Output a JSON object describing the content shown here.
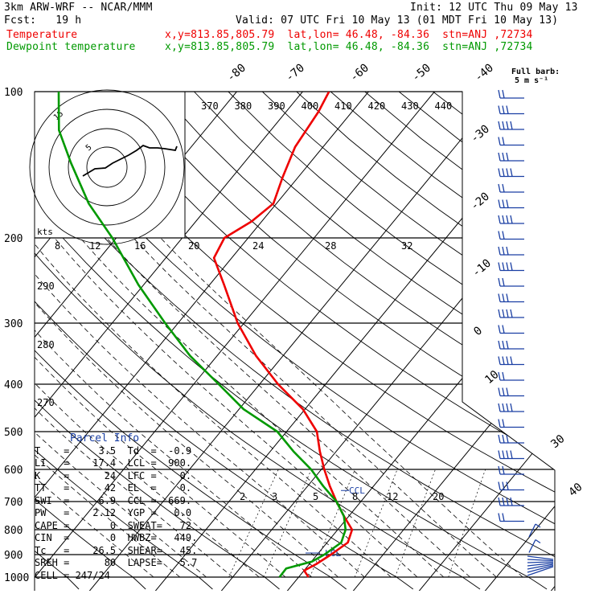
{
  "header": {
    "model": "3km ARW-WRF -- NCAR/MMM",
    "init": "Init: 12 UTC Thu 09 May 13",
    "fcst": "Fcst:   19 h",
    "valid": "Valid: 07 UTC Fri 10 May 13 (01 MDT Fri 10 May 13)",
    "temp_label": "Temperature",
    "dew_label": "Dewpoint temperature",
    "loc_info": "x,y=813.85,805.79  lat,lon= 46.48, -84.36  stn=ANJ ,72734"
  },
  "colors": {
    "temperature": "#ee0000",
    "dewpoint": "#009900",
    "parcel_title": "#1a3fa3",
    "barb": "#1a3fa3"
  },
  "barb_legend": {
    "title": "Full barb:",
    "unit": "5 m s⁻¹"
  },
  "hodograph": {
    "unit_label": "kts",
    "ring_labels": [
      "15",
      "5"
    ]
  },
  "parcel": {
    "title": "Parcel Info",
    "rows": [
      "T    =     3.5  Td  =  -0.9",
      "LI   =    17.4  LCL =  900.",
      "K    =      24  LFC =    0.",
      "TT   =      42  EL  =    0.",
      "SWI  =     6.9  CCL =  669.",
      "PW   =    2.12  YGP =   0.0",
      "CAPE =       0  SWEAT=   72",
      "CIN  =       0  HWBZ=   449.",
      "Tc   =    26.5  SHEAR=   45.",
      "SREH =      80  LAPSE=   5.7",
      "CELL = 247/24"
    ]
  },
  "chart_data": {
    "type": "skew-t",
    "pressure_ticks": [
      "100",
      "200",
      "300",
      "400",
      "500",
      "600",
      "700",
      "800",
      "900",
      "1000"
    ],
    "isotherm_labels_top": [
      "-80",
      "-70",
      "-60",
      "-50",
      "-40"
    ],
    "isotherm_labels_right": [
      "-30",
      "-20",
      "-10",
      "0",
      "10",
      "30",
      "40"
    ],
    "theta_labels": [
      "370",
      "380",
      "390",
      "400",
      "410",
      "420",
      "430",
      "440"
    ],
    "theta_side_labels": [
      "290",
      "280",
      "270"
    ],
    "mixing_ratio_top": [
      "8",
      "12",
      "16",
      "20",
      "24",
      "28",
      "32"
    ],
    "mixing_ratio_bottom": [
      "2",
      "3",
      "5",
      "8",
      "12",
      "20"
    ],
    "lcl_label": "LCL",
    "ccl_label": "CCL",
    "series": [
      {
        "name": "Temperature",
        "points": [
          [
            1000,
            3.5
          ],
          [
            970,
            2
          ],
          [
            940,
            3
          ],
          [
            900,
            4
          ],
          [
            850,
            5
          ],
          [
            800,
            4
          ],
          [
            750,
            1
          ],
          [
            700,
            -2
          ],
          [
            650,
            -5
          ],
          [
            600,
            -8
          ],
          [
            550,
            -11
          ],
          [
            500,
            -14
          ],
          [
            450,
            -19
          ],
          [
            400,
            -26
          ],
          [
            350,
            -33
          ],
          [
            300,
            -40
          ],
          [
            250,
            -47
          ],
          [
            220,
            -52
          ],
          [
            200,
            -53
          ],
          [
            185,
            -51
          ],
          [
            170,
            -50
          ],
          [
            150,
            -52
          ],
          [
            130,
            -54
          ],
          [
            110,
            -55
          ],
          [
            100,
            -56
          ]
        ]
      },
      {
        "name": "Dewpoint temperature",
        "points": [
          [
            1000,
            -0.9
          ],
          [
            960,
            -1
          ],
          [
            930,
            2
          ],
          [
            900,
            3
          ],
          [
            850,
            4
          ],
          [
            800,
            3
          ],
          [
            750,
            1
          ],
          [
            700,
            -2
          ],
          [
            650,
            -6
          ],
          [
            600,
            -10
          ],
          [
            550,
            -15
          ],
          [
            500,
            -20
          ],
          [
            450,
            -28
          ],
          [
            400,
            -35
          ],
          [
            350,
            -43
          ],
          [
            300,
            -51
          ],
          [
            250,
            -60
          ],
          [
            200,
            -70
          ],
          [
            170,
            -78
          ],
          [
            140,
            -86
          ],
          [
            120,
            -92
          ],
          [
            100,
            -97
          ]
        ]
      }
    ]
  }
}
